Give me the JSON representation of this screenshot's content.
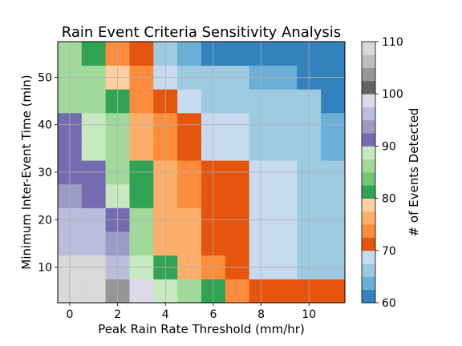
{
  "chart_data": {
    "type": "heatmap",
    "title": "Rain Event Criteria Sensitivity Analysis",
    "xlabel": "Peak Rain Rate Threshold (mm/hr)",
    "ylabel": "Minimum Inter-Event Time (min)",
    "colorbar_label": "# of Events Detected",
    "colormap": "tab20c",
    "x_centers": [
      0,
      1,
      2,
      3,
      4,
      5,
      6,
      7,
      8,
      9,
      10,
      11
    ],
    "y_centers": [
      5,
      10,
      15,
      20,
      25,
      30,
      35,
      40,
      45,
      50,
      55
    ],
    "xlim": [
      -0.5,
      11.5
    ],
    "ylim": [
      2.5,
      57.5
    ],
    "xticks": [
      0,
      2,
      4,
      6,
      8,
      10
    ],
    "yticks": [
      10,
      20,
      30,
      40,
      50
    ],
    "clim": [
      60,
      110
    ],
    "colorbar_ticks": [
      60,
      70,
      80,
      90,
      100,
      110
    ],
    "grid": true,
    "values_rows_bottom_to_top": [
      [
        110,
        110,
        104,
        98,
        88,
        86,
        82,
        74,
        72,
        72,
        72,
        70
      ],
      [
        110,
        110,
        96,
        88,
        82,
        76,
        74,
        70,
        68,
        68,
        66,
        66
      ],
      [
        96,
        96,
        93,
        85,
        76,
        76,
        70,
        70,
        68,
        68,
        66,
        66
      ],
      [
        96,
        95,
        92,
        85,
        76,
        76,
        70,
        70,
        68,
        68,
        66,
        66
      ],
      [
        94,
        92,
        88,
        82,
        75,
        74,
        70,
        70,
        68,
        68,
        66,
        66
      ],
      [
        91,
        91,
        87,
        82,
        76,
        74,
        70,
        70,
        68,
        68,
        66,
        66
      ],
      [
        91,
        88,
        85,
        77,
        73,
        71,
        68,
        68,
        66,
        66,
        66,
        64
      ],
      [
        91,
        88,
        85,
        77,
        73,
        71,
        68,
        68,
        66,
        66,
        66,
        64
      ],
      [
        87,
        87,
        81,
        74,
        71,
        68,
        66,
        66,
        66,
        66,
        66,
        62
      ],
      [
        86,
        85,
        78,
        74,
        68,
        66,
        66,
        66,
        64,
        64,
        62,
        62
      ],
      [
        85,
        82,
        74,
        72,
        66,
        64,
        62,
        62,
        62,
        62,
        62,
        62
      ]
    ]
  }
}
